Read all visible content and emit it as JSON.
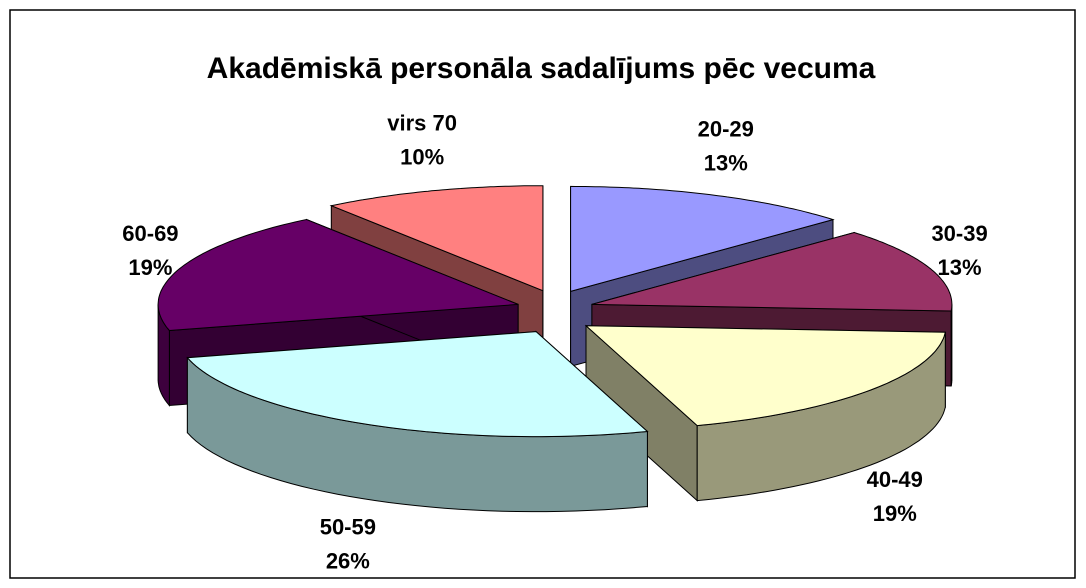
{
  "chart_data": {
    "type": "pie3d",
    "title": "Akadēmiskā personāla sadalījums pēc vecuma",
    "categories": [
      "20-29",
      "30-39",
      "40-49",
      "50-59",
      "60-69",
      "virs 70"
    ],
    "values": [
      13,
      13,
      19,
      26,
      19,
      10
    ],
    "value_labels": [
      "13%",
      "13%",
      "19%",
      "26%",
      "19%",
      "10%"
    ],
    "colors": [
      "#9999ff",
      "#993366",
      "#ffffcc",
      "#ccffff",
      "#660066",
      "#ff8080"
    ]
  }
}
